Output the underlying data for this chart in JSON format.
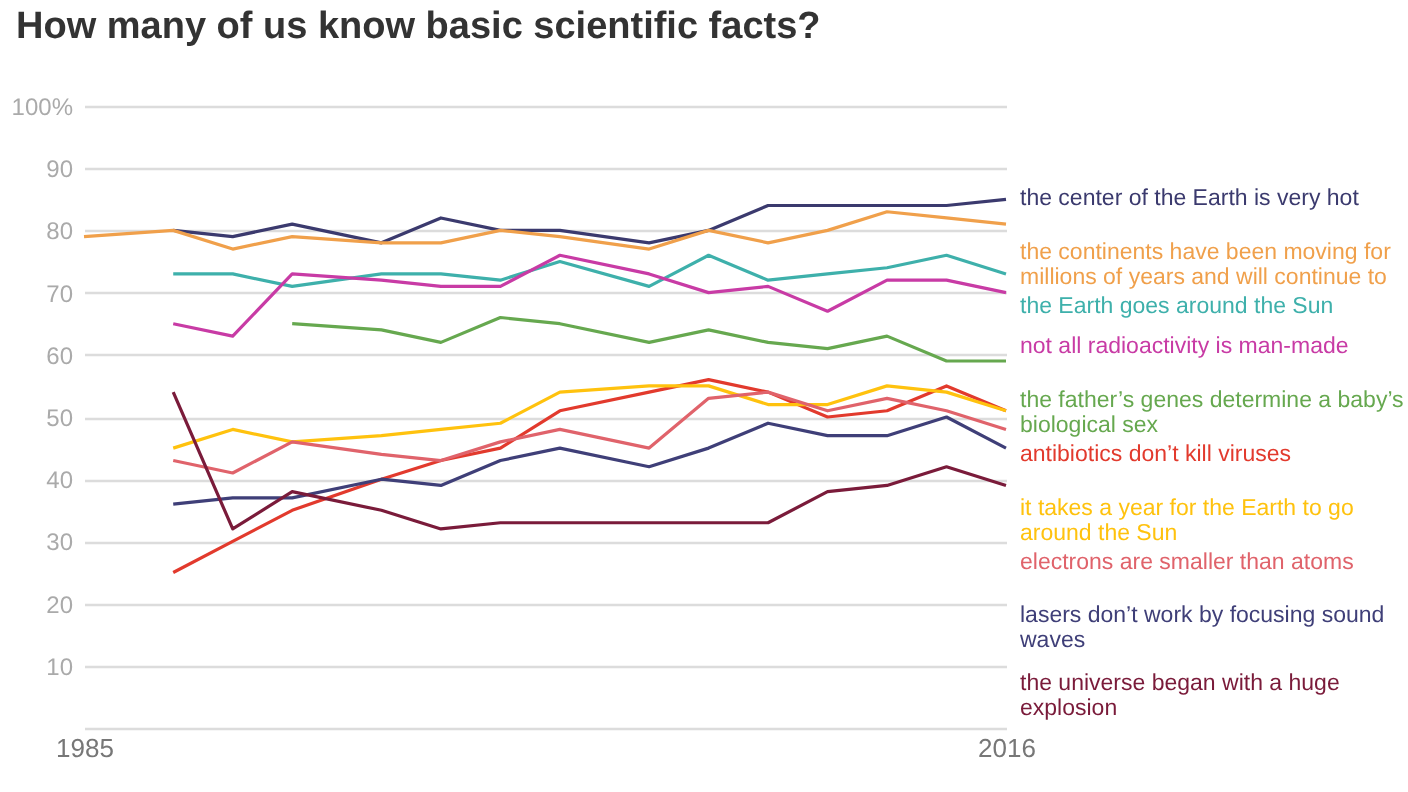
{
  "chart_data": {
    "type": "line",
    "title": "How many of us know basic scientific facts?",
    "x": [
      1985,
      1988,
      1990,
      1992,
      1995,
      1997,
      1999,
      2001,
      2004,
      2006,
      2008,
      2010,
      2012,
      2014,
      2016
    ],
    "xlim": [
      1985,
      2016
    ],
    "xticks": [
      1985,
      2016
    ],
    "ylim": [
      0,
      100
    ],
    "yticks": [
      {
        "value": 10,
        "label": "10"
      },
      {
        "value": 20,
        "label": "20"
      },
      {
        "value": 30,
        "label": "30"
      },
      {
        "value": 40,
        "label": "40"
      },
      {
        "value": 50,
        "label": "50"
      },
      {
        "value": 60,
        "label": "60"
      },
      {
        "value": 70,
        "label": "70"
      },
      {
        "value": 80,
        "label": "80"
      },
      {
        "value": 90,
        "label": "90"
      },
      {
        "value": 100,
        "label": "100%"
      }
    ],
    "grid": "y",
    "legend": false,
    "marker": "none",
    "line_style": "solid",
    "series": [
      {
        "name": "the center of the Earth is very hot",
        "color": "#3b3a6e",
        "values": [
          null,
          80,
          79,
          81,
          78,
          82,
          80,
          80,
          78,
          80,
          84,
          84,
          84,
          84,
          85
        ]
      },
      {
        "name": "the continents have been moving for millions of years and will continue to",
        "color": "#f0a04b",
        "values": [
          79,
          80,
          77,
          79,
          78,
          78,
          80,
          79,
          77,
          80,
          78,
          80,
          83,
          82,
          81
        ]
      },
      {
        "name": "the Earth goes around the Sun",
        "color": "#3eb0ab",
        "values": [
          null,
          73,
          73,
          71,
          73,
          73,
          72,
          75,
          71,
          76,
          72,
          73,
          74,
          76,
          73
        ]
      },
      {
        "name": "not all radioactivity is man-made",
        "color": "#c83ba5",
        "values": [
          null,
          65,
          63,
          73,
          72,
          71,
          71,
          76,
          73,
          70,
          71,
          67,
          72,
          72,
          70
        ]
      },
      {
        "name": "the father’s genes determine a baby’s biological sex",
        "color": "#66a84f",
        "values": [
          null,
          null,
          null,
          65,
          64,
          62,
          66,
          65,
          62,
          64,
          62,
          61,
          63,
          59,
          59
        ]
      },
      {
        "name": "antibiotics don’t kill viruses",
        "color": "#e23a2d",
        "values": [
          null,
          25,
          30,
          35,
          40,
          43,
          45,
          51,
          54,
          56,
          54,
          50,
          51,
          55,
          51
        ]
      },
      {
        "name": "it takes a year for the Earth to go around the Sun",
        "color": "#ffc20e",
        "values": [
          null,
          45,
          48,
          46,
          47,
          48,
          49,
          54,
          55,
          55,
          52,
          52,
          55,
          54,
          51
        ]
      },
      {
        "name": "electrons are smaller than atoms",
        "color": "#e0636b",
        "values": [
          null,
          43,
          41,
          46,
          44,
          43,
          46,
          48,
          45,
          53,
          54,
          51,
          53,
          51,
          48
        ]
      },
      {
        "name": "lasers don’t work by focusing sound waves",
        "color": "#3f3f78",
        "values": [
          null,
          36,
          37,
          37,
          40,
          39,
          43,
          45,
          42,
          45,
          49,
          47,
          47,
          50,
          45
        ]
      },
      {
        "name": "the universe began with a huge explosion",
        "color": "#7a1b3a",
        "values": [
          null,
          54,
          32,
          38,
          35,
          32,
          33,
          33,
          33,
          33,
          33,
          38,
          39,
          42,
          39
        ]
      }
    ]
  }
}
